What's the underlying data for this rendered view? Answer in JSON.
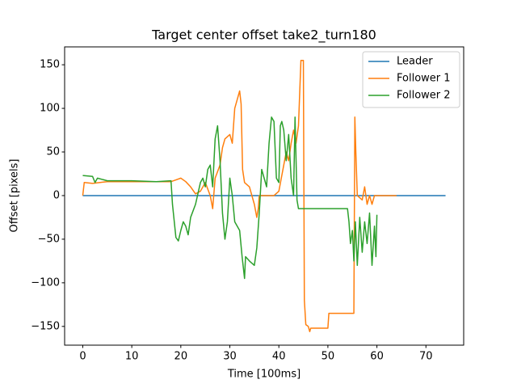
{
  "chart_data": {
    "type": "line",
    "title": "Target center offset take2_turn180",
    "x_label": "Time [100ms]",
    "y_label": "Offset [pixels]",
    "xlim": [
      -3.7,
      77.7
    ],
    "ylim": [
      -171.5,
      170.5
    ],
    "xticks": [
      0,
      10,
      20,
      30,
      40,
      50,
      60,
      70
    ],
    "yticks": [
      {
        "value": -150,
        "label": "−150"
      },
      {
        "value": -100,
        "label": "−100"
      },
      {
        "value": -50,
        "label": "−50"
      },
      0,
      50,
      100,
      150
    ],
    "grid": false,
    "legend": "upper right",
    "series": [
      {
        "name": "Leader",
        "color": "#1f77b4",
        "x": [
          0,
          74
        ],
        "values": [
          0,
          0
        ]
      },
      {
        "name": "Follower 1",
        "color": "#ff7f0e",
        "x": [
          0,
          0.3,
          2,
          5,
          10,
          15,
          18,
          19,
          20,
          21,
          22,
          23,
          24,
          25,
          26,
          26.5,
          27,
          28,
          28.5,
          29,
          30,
          30.5,
          31,
          31.5,
          32,
          32.3,
          32.6,
          33,
          34,
          35,
          35.5,
          35.8,
          36,
          39,
          40,
          40.5,
          41,
          41.5,
          42,
          42.5,
          43,
          43.5,
          44,
          44.5,
          45,
          45.2,
          45.5,
          46,
          46.3,
          46.5,
          50,
          50.2,
          55.3,
          55.5,
          55.7,
          56,
          57,
          57.5,
          58,
          58.5,
          59,
          59.5,
          64
        ],
        "values": [
          0,
          15,
          14,
          16,
          16,
          16,
          16,
          18,
          20,
          16,
          10,
          2,
          5,
          15,
          0,
          -15,
          20,
          35,
          55,
          65,
          70,
          60,
          100,
          110,
          120,
          105,
          30,
          15,
          10,
          -10,
          -25,
          -15,
          0,
          0,
          5,
          20,
          35,
          50,
          40,
          60,
          75,
          60,
          80,
          155,
          155,
          -120,
          -148,
          -150,
          -156,
          -152,
          -152,
          -135,
          -135,
          90,
          50,
          0,
          -5,
          10,
          -10,
          0,
          -10,
          0,
          0
        ]
      },
      {
        "name": "Follower 2",
        "color": "#2ca02c",
        "x": [
          0,
          2,
          2.5,
          3,
          5,
          10,
          15,
          18,
          18.3,
          19,
          19.5,
          20,
          20.5,
          21,
          21.5,
          22,
          23,
          24,
          24.5,
          25,
          25.5,
          26,
          26.5,
          27,
          27.5,
          28,
          28.5,
          29,
          29.5,
          30,
          30.5,
          31,
          32,
          32.5,
          33,
          33.2,
          34,
          35,
          35.5,
          36,
          36.5,
          37,
          37.5,
          38,
          38.5,
          39,
          39.5,
          40,
          40.3,
          40.6,
          41,
          41.5,
          42,
          42.5,
          43,
          43.3,
          43.7,
          44,
          45,
          50,
          54,
          54.3,
          54.6,
          55,
          55.3,
          55.6,
          56,
          56.5,
          57,
          57.5,
          58,
          58.5,
          59,
          59.5,
          59.8,
          60
        ],
        "values": [
          23,
          22,
          15,
          20,
          17,
          17,
          16,
          17,
          -10,
          -48,
          -52,
          -40,
          -30,
          -35,
          -45,
          -25,
          -10,
          15,
          20,
          10,
          30,
          35,
          10,
          65,
          80,
          40,
          -20,
          -50,
          -30,
          20,
          0,
          -30,
          -40,
          -70,
          -95,
          -70,
          -75,
          -80,
          -60,
          -20,
          30,
          20,
          10,
          60,
          90,
          85,
          20,
          15,
          80,
          85,
          75,
          40,
          70,
          20,
          0,
          90,
          -5,
          -15,
          -15,
          -15,
          -15,
          -30,
          -55,
          -40,
          -75,
          -30,
          -80,
          -25,
          -65,
          -30,
          -55,
          -20,
          -80,
          -35,
          -70,
          -22
        ]
      }
    ]
  }
}
